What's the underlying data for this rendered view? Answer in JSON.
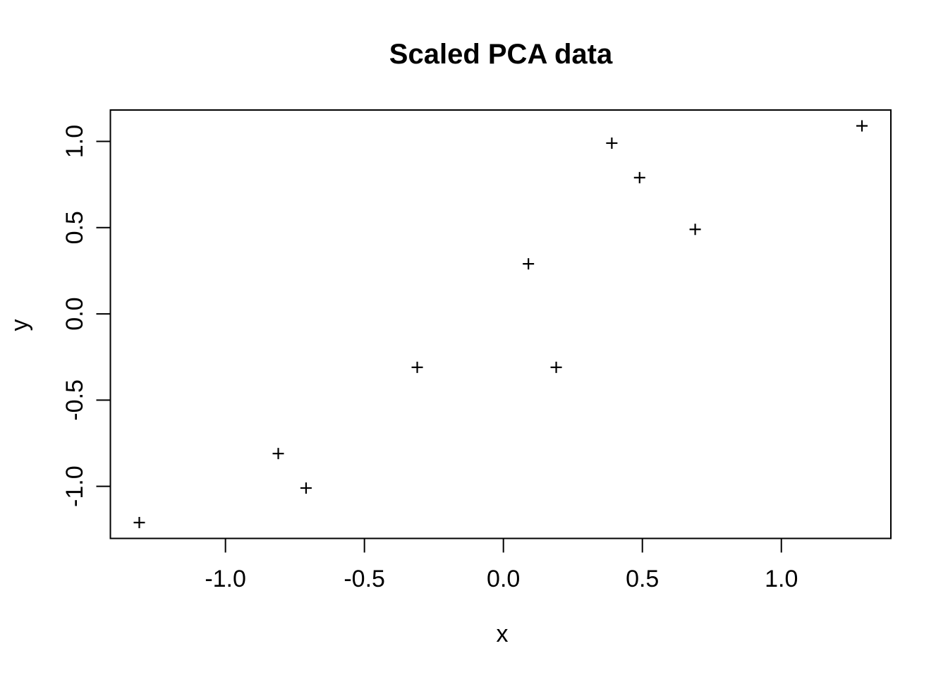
{
  "page": {
    "background": "#ffffff",
    "foreground": "#000000"
  },
  "chart_data": {
    "type": "scatter",
    "title": "Scaled PCA data",
    "xlabel": "x",
    "ylabel": "y",
    "marker": "plus",
    "marker_color": "#000000",
    "axis_color": "#000000",
    "grid": false,
    "legend": null,
    "xlim": [
      -1.414,
      1.394
    ],
    "ylim": [
      -1.302,
      1.182
    ],
    "x_ticks": [
      -1.0,
      -0.5,
      0.0,
      0.5,
      1.0
    ],
    "x_tick_labels": [
      "-1.0",
      "-0.5",
      "0.0",
      "0.5",
      "1.0"
    ],
    "y_ticks": [
      -1.0,
      -0.5,
      0.0,
      0.5,
      1.0
    ],
    "y_tick_labels": [
      "-1.0",
      "-0.5",
      "0.0",
      "0.5",
      "1.0"
    ],
    "points": [
      {
        "x": 0.69,
        "y": 0.49
      },
      {
        "x": -1.31,
        "y": -1.21
      },
      {
        "x": 0.39,
        "y": 0.99
      },
      {
        "x": 0.09,
        "y": 0.29
      },
      {
        "x": 1.29,
        "y": 1.09
      },
      {
        "x": 0.49,
        "y": 0.79
      },
      {
        "x": 0.19,
        "y": -0.31
      },
      {
        "x": -0.81,
        "y": -0.81
      },
      {
        "x": -0.31,
        "y": -0.31
      },
      {
        "x": -0.71,
        "y": -1.01
      }
    ]
  }
}
